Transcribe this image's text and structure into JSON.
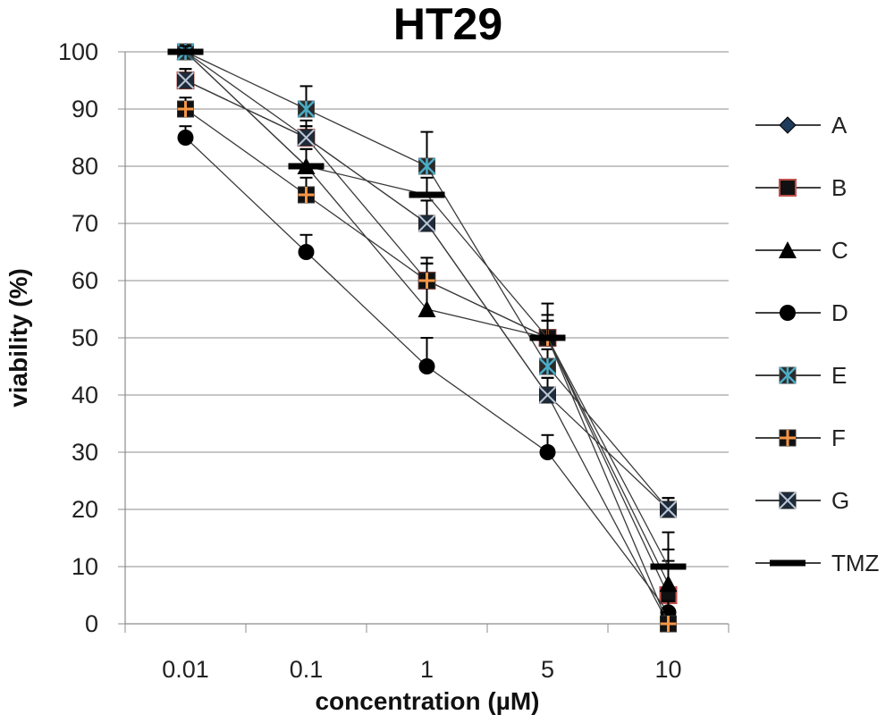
{
  "chart_data": {
    "type": "line",
    "title": "HT29",
    "xlabel": "concentration (µM)",
    "ylabel": "viability (%)",
    "categories": [
      "0.01",
      "0.1",
      "1",
      "5",
      "10"
    ],
    "ylim": [
      0,
      100
    ],
    "yticks": [
      0,
      10,
      20,
      30,
      40,
      50,
      60,
      70,
      80,
      90,
      100
    ],
    "grid": "horizontal",
    "legend_position": "right",
    "series": [
      {
        "name": "A",
        "marker": "diamond",
        "color": "#1f3a5a",
        "values": [
          100,
          85,
          70,
          40,
          0
        ],
        "errors": [
          1,
          2,
          4,
          3,
          2
        ]
      },
      {
        "name": "B",
        "marker": "square",
        "color": "#c0504d",
        "values": [
          95,
          85,
          60,
          50,
          5
        ],
        "errors": [
          2,
          3,
          4,
          4,
          6
        ]
      },
      {
        "name": "C",
        "marker": "triangle",
        "color": "#000000",
        "values": [
          100,
          80,
          55,
          50,
          7
        ],
        "errors": [
          1,
          3,
          8,
          3,
          6
        ]
      },
      {
        "name": "D",
        "marker": "circle",
        "color": "#000000",
        "values": [
          85,
          65,
          45,
          30,
          2
        ],
        "errors": [
          2,
          3,
          5,
          3,
          2
        ]
      },
      {
        "name": "E",
        "marker": "star-square",
        "color": "#4bacc6",
        "values": [
          100,
          90,
          80,
          45,
          20
        ],
        "errors": [
          1,
          4,
          6,
          3,
          2
        ]
      },
      {
        "name": "F",
        "marker": "plus-square",
        "color": "#f79646",
        "values": [
          90,
          75,
          60,
          50,
          0
        ],
        "errors": [
          2,
          3,
          3,
          3,
          2
        ]
      },
      {
        "name": "G",
        "marker": "x-square",
        "color": "#1f3a5a",
        "values": [
          95,
          85,
          70,
          40,
          20
        ],
        "errors": [
          2,
          2,
          4,
          3,
          2
        ]
      },
      {
        "name": "TMZ",
        "marker": "dash",
        "color": "#000000",
        "values": [
          100,
          80,
          75,
          50,
          10
        ],
        "errors": [
          1,
          3,
          3,
          6,
          6
        ]
      }
    ]
  }
}
